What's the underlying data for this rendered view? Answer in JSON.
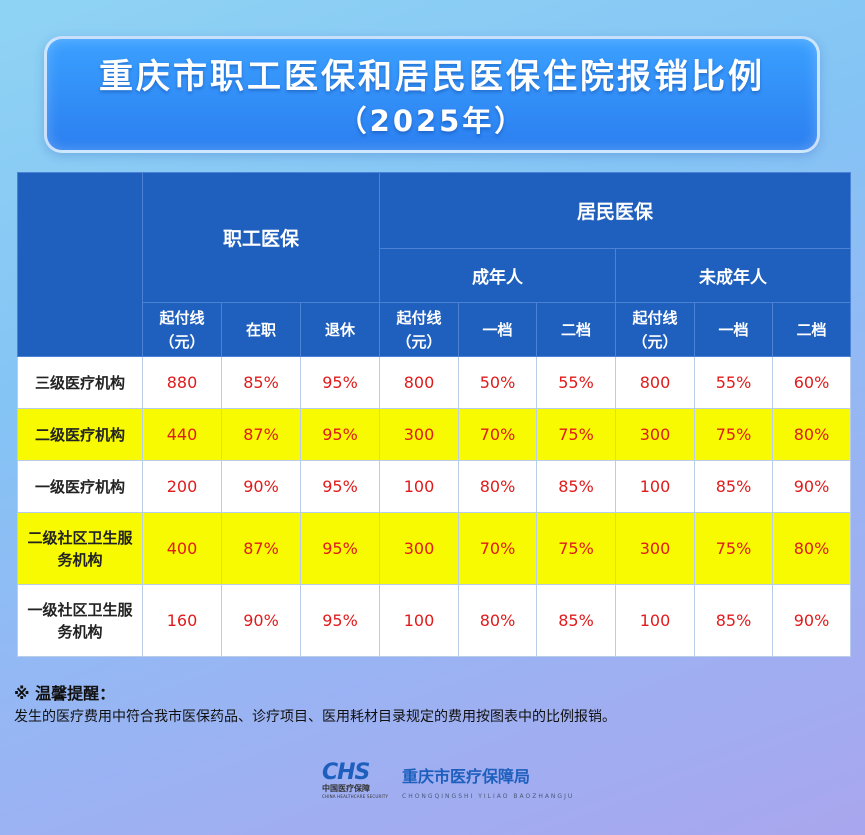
{
  "title": {
    "main": "重庆市职工医保和居民医保住院报销比例",
    "sub": "（2025年）"
  },
  "table": {
    "group_headers": {
      "employee": "职工医保",
      "resident": "居民医保",
      "adult": "成年人",
      "minor": "未成年人"
    },
    "sub_headers": {
      "emp_threshold_l1": "起付线",
      "emp_threshold_l2": "（元）",
      "emp_active": "在职",
      "emp_retired": "退休",
      "adult_threshold_l1": "起付线",
      "adult_threshold_l2": "（元）",
      "adult_tier1": "一档",
      "adult_tier2": "二档",
      "minor_threshold_l1": "起付线",
      "minor_threshold_l2": "（元）",
      "minor_tier1": "一档",
      "minor_tier2": "二档"
    },
    "rows": [
      {
        "label_l1": "三级医疗机构",
        "label_l2": "",
        "cells": [
          "880",
          "85%",
          "95%",
          "800",
          "50%",
          "55%",
          "800",
          "55%",
          "60%"
        ]
      },
      {
        "label_l1": "二级医疗机构",
        "label_l2": "",
        "cells": [
          "440",
          "87%",
          "95%",
          "300",
          "70%",
          "75%",
          "300",
          "75%",
          "80%"
        ]
      },
      {
        "label_l1": "一级医疗机构",
        "label_l2": "",
        "cells": [
          "200",
          "90%",
          "95%",
          "100",
          "80%",
          "85%",
          "100",
          "85%",
          "90%"
        ]
      },
      {
        "label_l1": "二级社区卫生服",
        "label_l2": "务机构",
        "cells": [
          "400",
          "87%",
          "95%",
          "300",
          "70%",
          "75%",
          "300",
          "75%",
          "80%"
        ]
      },
      {
        "label_l1": "一级社区卫生服",
        "label_l2": "务机构",
        "cells": [
          "160",
          "90%",
          "95%",
          "100",
          "80%",
          "85%",
          "100",
          "85%",
          "90%"
        ]
      }
    ]
  },
  "tip": {
    "title": "※ 温馨提醒：",
    "text": "发生的医疗费用中符合我市医保药品、诊疗项目、医用耗材目录规定的费用按图表中的比例报销。"
  },
  "footer": {
    "logo_mark": "CHS",
    "logo_cn": "中国医疗保障",
    "logo_en": "CHINA HEALTHCARE SECURITY",
    "agency_cn": "重庆市医疗保障局",
    "agency_en": "CHONGQINGSHI YILIAO BAOZHANGJU"
  },
  "colors": {
    "header_blue": "#1f5fbd",
    "title_blue": "#2b7ff0",
    "highlight_yellow": "#f7fa00",
    "value_red": "#e01b1b"
  }
}
